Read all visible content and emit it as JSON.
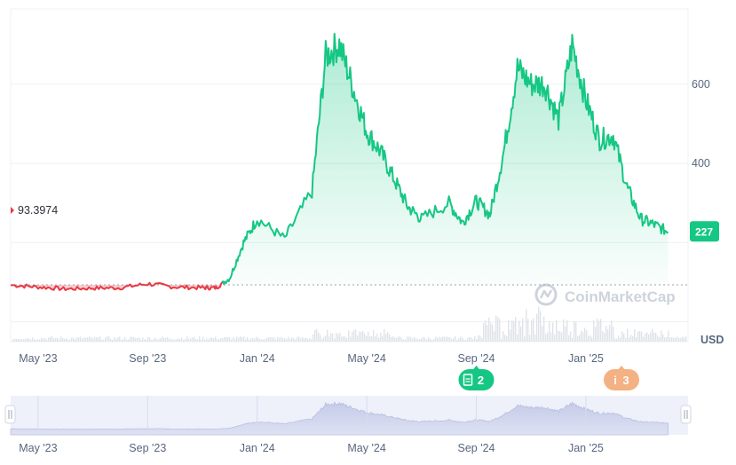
{
  "chart_data": {
    "type": "area",
    "currency_label": "USD",
    "baseline_label": "93.3974",
    "baseline_value": 93.3974,
    "current_price_label": "227",
    "current_price": 227,
    "y_ticks": [
      {
        "value": 400,
        "label": "400"
      },
      {
        "value": 600,
        "label": "600"
      }
    ],
    "x_ticks": [
      "May '23",
      "Sep '23",
      "Jan '24",
      "May '24",
      "Sep '24",
      "Jan '25"
    ],
    "ylim": [
      -50,
      790
    ],
    "watermark": "CoinMarketCap",
    "events": [
      {
        "label": "2",
        "icon": "document-icon",
        "date": "Sep '24",
        "color": "#16c784"
      },
      {
        "label": "3",
        "icon": "info-icon",
        "date": "Feb '25",
        "color": "#f4b183"
      }
    ],
    "colors": {
      "up": "#16c784",
      "down": "#ea3943"
    },
    "series": [
      {
        "dates": [
          "2023-04",
          "2023-05",
          "2023-06",
          "2023-07",
          "2023-08",
          "2023-09",
          "2023-10",
          "2023-11",
          "2023-11",
          "2023-12",
          "2023-12",
          "2024-01",
          "2024-02",
          "2024-03",
          "2024-03",
          "2024-04",
          "2024-04",
          "2024-05",
          "2024-05",
          "2024-06",
          "2024-06",
          "2024-07",
          "2024-08",
          "2024-08",
          "2024-09",
          "2024-09",
          "2024-10",
          "2024-10",
          "2024-11",
          "2024-11",
          "2024-12",
          "2024-12",
          "2025-01",
          "2025-01",
          "2025-02",
          "2025-02",
          "2025-03",
          "2025-03",
          "2025-04"
        ],
        "values": [
          93,
          88,
          83,
          85,
          86,
          96,
          88,
          86,
          86,
          110,
          200,
          260,
          210,
          330,
          670,
          700,
          590,
          480,
          430,
          360,
          290,
          260,
          300,
          250,
          305,
          270,
          430,
          640,
          600,
          600,
          510,
          700,
          560,
          460,
          470,
          340,
          260,
          245,
          227
        ]
      }
    ]
  }
}
